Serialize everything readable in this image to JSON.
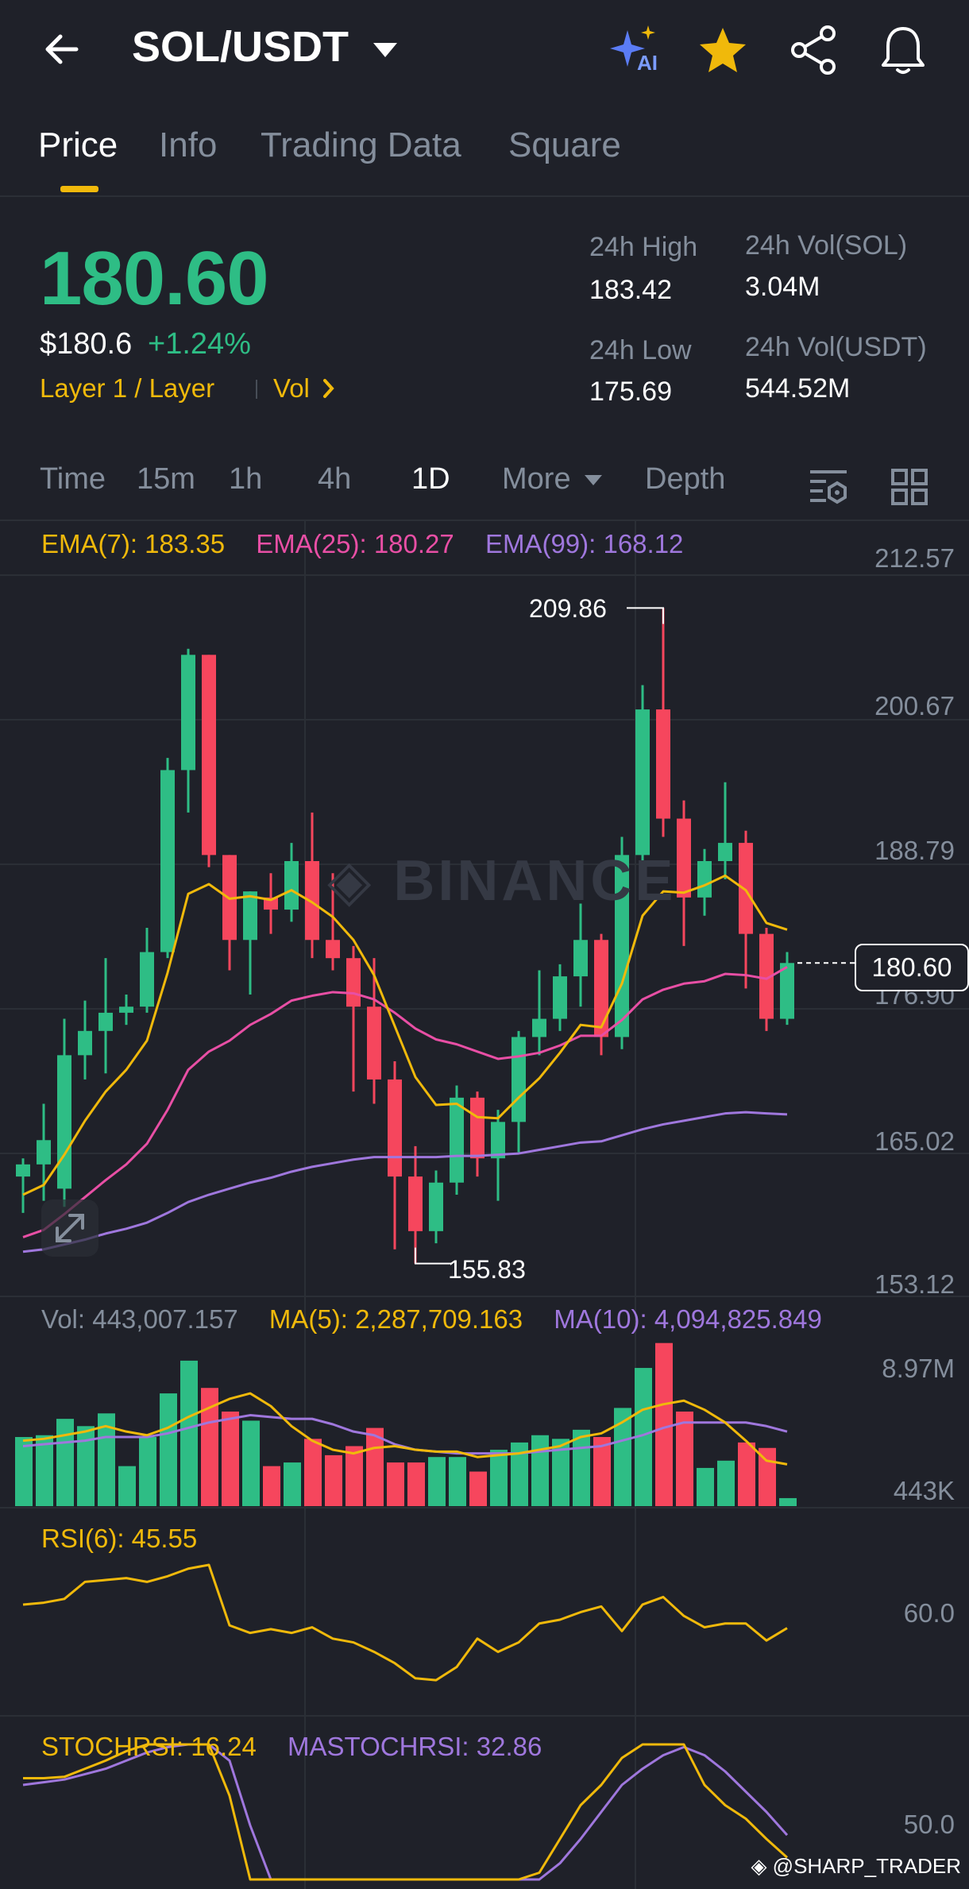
{
  "header": {
    "title": "SOL/USDT",
    "icons": [
      "back-arrow-icon",
      "dropdown-caret-icon",
      "ai-sparkle-icon",
      "star-icon",
      "share-icon",
      "bell-icon"
    ],
    "ai_label": "AI"
  },
  "tabs": [
    {
      "label": "Price",
      "active": true
    },
    {
      "label": "Info",
      "active": false
    },
    {
      "label": "Trading Data",
      "active": false
    },
    {
      "label": "Square",
      "active": false
    }
  ],
  "summary": {
    "last_price": "180.60",
    "usd_price": "$180.6",
    "change": "+1.24%",
    "tag1": "Layer 1 / Layer",
    "tag2": "Vol",
    "high_label": "24h High",
    "high_value": "183.42",
    "low_label": "24h Low",
    "low_value": "175.69",
    "vol_sol_label": "24h Vol(SOL)",
    "vol_sol_value": "3.04M",
    "vol_usdt_label": "24h Vol(USDT)",
    "vol_usdt_value": "544.52M"
  },
  "intervals": [
    {
      "label": "Time",
      "active": false
    },
    {
      "label": "15m",
      "active": false
    },
    {
      "label": "1h",
      "active": false
    },
    {
      "label": "4h",
      "active": false
    },
    {
      "label": "1D",
      "active": true
    },
    {
      "label": "More",
      "active": false
    },
    {
      "label": "Depth",
      "active": false
    }
  ],
  "indicators": {
    "ema7": "EMA(7): 183.35",
    "ema25": "EMA(25): 180.27",
    "ema99": "EMA(99): 168.12",
    "vol": "Vol: 443,007.157",
    "ma5": "MA(5): 2,287,709.163",
    "ma10": "MA(10): 4,094,825.849",
    "rsi": "RSI(6): 45.55",
    "stochrsi": "STOCHRSI: 16.24",
    "mastochrsi": "MASTOCHRSI: 32.86"
  },
  "colors": {
    "up": "#2ebd85",
    "down": "#f6465d",
    "ema7": "#f0b90b",
    "ema25": "#e84fa5",
    "ema99": "#9f77dd",
    "accent": "#f0b90b"
  },
  "chart_data": {
    "type": "candlestick",
    "price_axis_ticks": [
      "212.57",
      "200.67",
      "188.79",
      "176.90",
      "165.02",
      "153.12"
    ],
    "ylim": [
      153.12,
      212.57
    ],
    "high_annotation": "209.86",
    "low_annotation": "155.83",
    "last_price_tag": "180.60",
    "candles": [
      {
        "o": 163.0,
        "h": 164.5,
        "l": 160.0,
        "c": 164.0
      },
      {
        "o": 164.0,
        "h": 169.0,
        "l": 161.0,
        "c": 166.0
      },
      {
        "o": 162.0,
        "h": 176.0,
        "l": 160.5,
        "c": 173.0
      },
      {
        "o": 173.0,
        "h": 177.5,
        "l": 171.0,
        "c": 175.0
      },
      {
        "o": 175.0,
        "h": 181.0,
        "l": 171.5,
        "c": 176.5
      },
      {
        "o": 176.5,
        "h": 178.0,
        "l": 175.5,
        "c": 177.0
      },
      {
        "o": 177.0,
        "h": 183.5,
        "l": 176.5,
        "c": 181.5
      },
      {
        "o": 181.5,
        "h": 197.5,
        "l": 181.0,
        "c": 196.5
      },
      {
        "o": 196.5,
        "h": 206.5,
        "l": 193.0,
        "c": 206.0
      },
      {
        "o": 206.0,
        "h": 206.0,
        "l": 188.5,
        "c": 189.5
      },
      {
        "o": 189.5,
        "h": 189.5,
        "l": 180.0,
        "c": 182.5
      },
      {
        "o": 182.5,
        "h": 186.5,
        "l": 178.0,
        "c": 186.5
      },
      {
        "o": 186.0,
        "h": 188.0,
        "l": 183.0,
        "c": 185.0
      },
      {
        "o": 185.0,
        "h": 190.5,
        "l": 184.0,
        "c": 189.0
      },
      {
        "o": 189.0,
        "h": 193.0,
        "l": 181.0,
        "c": 182.5
      },
      {
        "o": 182.5,
        "h": 188.0,
        "l": 180.0,
        "c": 181.0
      },
      {
        "o": 181.0,
        "h": 182.0,
        "l": 170.0,
        "c": 177.0
      },
      {
        "o": 177.0,
        "h": 181.0,
        "l": 169.0,
        "c": 171.0
      },
      {
        "o": 171.0,
        "h": 172.5,
        "l": 157.0,
        "c": 163.0
      },
      {
        "o": 163.0,
        "h": 165.5,
        "l": 155.83,
        "c": 158.5
      },
      {
        "o": 158.5,
        "h": 163.5,
        "l": 157.5,
        "c": 162.5
      },
      {
        "o": 162.5,
        "h": 170.5,
        "l": 161.5,
        "c": 169.5
      },
      {
        "o": 169.5,
        "h": 170.0,
        "l": 163.0,
        "c": 164.5
      },
      {
        "o": 164.5,
        "h": 168.5,
        "l": 161.0,
        "c": 167.5
      },
      {
        "o": 167.5,
        "h": 175.0,
        "l": 165.0,
        "c": 174.5
      },
      {
        "o": 174.5,
        "h": 180.0,
        "l": 173.0,
        "c": 176.0
      },
      {
        "o": 176.0,
        "h": 180.5,
        "l": 175.0,
        "c": 179.5
      },
      {
        "o": 179.5,
        "h": 185.5,
        "l": 177.0,
        "c": 182.5
      },
      {
        "o": 182.5,
        "h": 183.0,
        "l": 173.0,
        "c": 174.5
      },
      {
        "o": 174.5,
        "h": 191.0,
        "l": 173.5,
        "c": 189.5
      },
      {
        "o": 189.5,
        "h": 203.5,
        "l": 188.0,
        "c": 201.5
      },
      {
        "o": 201.5,
        "h": 209.86,
        "l": 191.0,
        "c": 192.5
      },
      {
        "o": 192.5,
        "h": 194.0,
        "l": 182.0,
        "c": 186.0
      },
      {
        "o": 186.0,
        "h": 190.0,
        "l": 184.5,
        "c": 189.0
      },
      {
        "o": 189.0,
        "h": 195.5,
        "l": 187.5,
        "c": 190.5
      },
      {
        "o": 190.5,
        "h": 191.5,
        "l": 178.5,
        "c": 183.0
      },
      {
        "o": 183.0,
        "h": 183.5,
        "l": 175.0,
        "c": 176.0
      },
      {
        "o": 176.0,
        "h": 181.5,
        "l": 175.5,
        "c": 180.6
      }
    ],
    "ema7": [
      161.5,
      162.3,
      164.8,
      167.6,
      170.0,
      171.8,
      174.2,
      179.8,
      186.3,
      187.1,
      185.9,
      186.1,
      185.8,
      186.6,
      185.6,
      184.4,
      182.5,
      179.6,
      175.4,
      171.2,
      168.9,
      169.0,
      167.9,
      167.8,
      169.5,
      171.1,
      173.2,
      175.5,
      175.3,
      178.9,
      184.5,
      186.5,
      186.4,
      187.0,
      187.8,
      186.6,
      183.9,
      183.35
    ],
    "ema25": [
      158.0,
      158.6,
      159.9,
      161.3,
      162.7,
      164.0,
      165.7,
      168.5,
      171.8,
      173.3,
      174.2,
      175.5,
      176.4,
      177.5,
      177.9,
      178.2,
      178.1,
      177.6,
      176.5,
      175.2,
      174.3,
      173.9,
      173.3,
      172.7,
      172.9,
      173.2,
      173.8,
      174.6,
      174.6,
      175.9,
      177.6,
      178.4,
      178.9,
      179.1,
      179.7,
      179.6,
      179.3,
      180.27
    ],
    "ema99": [
      156.8,
      157.0,
      157.4,
      157.8,
      158.3,
      158.7,
      159.2,
      160.0,
      160.9,
      161.5,
      162.0,
      162.5,
      162.9,
      163.4,
      163.8,
      164.1,
      164.4,
      164.6,
      164.6,
      164.6,
      164.6,
      164.7,
      164.7,
      164.8,
      164.9,
      165.2,
      165.5,
      165.8,
      165.9,
      166.4,
      166.9,
      167.3,
      167.6,
      167.9,
      168.2,
      168.3,
      168.2,
      168.12
    ],
    "volume_axis_ticks": [
      "8.97M",
      "443K"
    ],
    "volume_ylim": [
      0,
      9.0
    ],
    "volume": [
      3.8,
      3.9,
      4.8,
      4.4,
      5.1,
      2.2,
      3.8,
      6.2,
      8.0,
      6.5,
      5.2,
      4.7,
      2.2,
      2.4,
      3.7,
      2.8,
      3.3,
      4.3,
      2.4,
      2.4,
      2.7,
      2.7,
      1.9,
      3.1,
      3.5,
      3.9,
      3.7,
      4.2,
      3.8,
      5.4,
      7.6,
      8.97,
      5.2,
      2.1,
      2.5,
      3.5,
      3.2,
      0.44
    ],
    "vol_ma5": [
      3.6,
      3.7,
      3.9,
      4.1,
      4.4,
      4.1,
      3.9,
      4.3,
      4.9,
      5.4,
      5.9,
      6.2,
      5.5,
      4.4,
      3.6,
      3.1,
      2.9,
      3.2,
      3.3,
      3.1,
      3.0,
      3.0,
      2.7,
      2.8,
      2.9,
      3.1,
      3.3,
      3.8,
      4.0,
      4.6,
      5.3,
      5.6,
      5.8,
      5.3,
      4.6,
      3.6,
      2.5,
      2.3
    ],
    "vol_ma10": [
      3.3,
      3.4,
      3.5,
      3.6,
      3.8,
      3.8,
      3.8,
      4.0,
      4.3,
      4.6,
      4.8,
      5.0,
      4.9,
      4.8,
      4.8,
      4.5,
      4.1,
      3.9,
      3.4,
      3.1,
      3.0,
      2.9,
      2.9,
      2.9,
      2.9,
      3.0,
      3.1,
      3.2,
      3.3,
      3.6,
      3.9,
      4.3,
      4.6,
      4.6,
      4.6,
      4.6,
      4.4,
      4.1
    ],
    "rsi_axis_ticks": [
      "60.0"
    ],
    "rsi6": [
      58,
      59,
      61,
      70,
      71,
      72,
      70,
      73,
      77,
      79,
      47,
      43,
      45,
      43,
      46,
      40,
      38,
      33,
      27,
      19,
      18,
      25,
      40,
      33,
      38,
      48,
      50,
      54,
      57,
      44,
      58,
      62,
      52,
      46,
      48,
      48,
      39,
      45.55
    ],
    "stoch_axis_ticks": [
      "50.0"
    ],
    "stochrsi": [
      75,
      75,
      76,
      82,
      88,
      95,
      100,
      100,
      100,
      100,
      62,
      0,
      0,
      0,
      0,
      0,
      0,
      0,
      0,
      0,
      0,
      0,
      0,
      0,
      0,
      5,
      30,
      55,
      70,
      90,
      100,
      100,
      100,
      70,
      55,
      45,
      30,
      16.24
    ],
    "mastochrsi": [
      70,
      72,
      74,
      78,
      82,
      88,
      94,
      98,
      100,
      100,
      88,
      40,
      0,
      0,
      0,
      0,
      0,
      0,
      0,
      0,
      0,
      0,
      0,
      0,
      0,
      0,
      12,
      30,
      50,
      70,
      82,
      92,
      98,
      92,
      80,
      65,
      50,
      32.86
    ]
  },
  "footer": {
    "credit": "@SHARP_TRADER"
  }
}
